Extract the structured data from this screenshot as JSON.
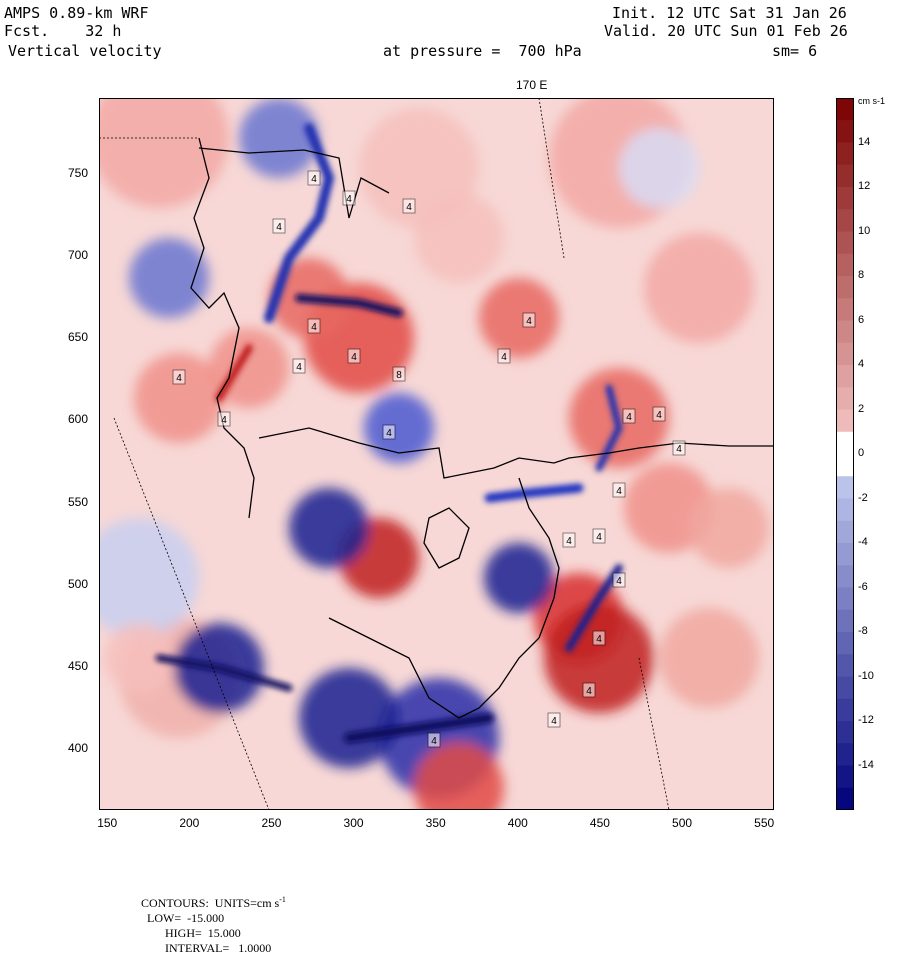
{
  "header": {
    "model": "AMPS 0.89-km WRF",
    "init": "Init. 12 UTC Sat 31 Jan 26",
    "fcst": "Fcst.    32 h",
    "valid": "Valid. 20 UTC Sun 01 Feb 26",
    "field": "Vertical velocity",
    "level": "at pressure =  700 hPa",
    "smooth": "sm= 6",
    "longitude": "170 E"
  },
  "axes": {
    "x_ticks": [
      "150",
      "200",
      "250",
      "300",
      "350",
      "400",
      "450",
      "500",
      "550"
    ],
    "x_values": [
      150,
      200,
      250,
      300,
      350,
      400,
      450,
      500,
      550
    ],
    "y_ticks": [
      "750",
      "700",
      "650",
      "600",
      "550",
      "500",
      "450",
      "400"
    ],
    "y_values": [
      750,
      700,
      650,
      600,
      550,
      500,
      450,
      400
    ],
    "x_range": [
      145,
      556
    ],
    "y_range": [
      363,
      796
    ]
  },
  "colorbar": {
    "units": "cm s-1",
    "tick_labels": [
      "14",
      "12",
      "10",
      "8",
      "6",
      "4",
      "2",
      "0",
      "-2",
      "-4",
      "-6",
      "-8",
      "-10",
      "-12",
      "-14"
    ],
    "tick_values": [
      14,
      12,
      10,
      8,
      6,
      4,
      2,
      0,
      -2,
      -4,
      -6,
      -8,
      -10,
      -12,
      -14
    ],
    "min": -16,
    "max": 16,
    "color_high": "#7a0000",
    "color_mid": "#ffffff",
    "color_low": "#00007a"
  },
  "contour_labels": [
    "4",
    "4",
    "4",
    "4",
    "4",
    "4",
    "4",
    "8",
    "4",
    "4",
    "4",
    "4",
    "4",
    "4",
    "4",
    "4",
    "4",
    "4",
    "4",
    "4",
    "4",
    "4",
    "4",
    "4"
  ],
  "footer": {
    "label": "CONTOURS:  UNITS=cm s",
    "units_sup": "-1",
    "low": "LOW=  -15.000",
    "high": "HIGH=  15.000",
    "interval": "INTERVAL=   1.0000"
  },
  "colors": {
    "background": "#ffffff",
    "map_bg": "#f7d8d6"
  }
}
